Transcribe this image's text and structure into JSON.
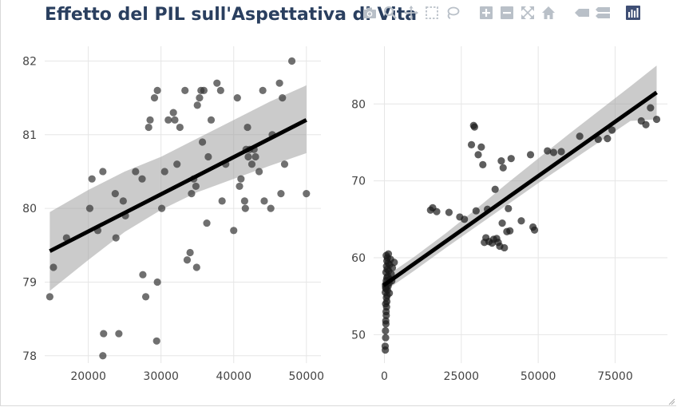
{
  "title": "Effetto del PIL sull'Aspettativa di Vita",
  "modebar": {
    "buttons": [
      {
        "name": "camera-icon"
      },
      {
        "name": "zoom-icon"
      },
      {
        "name": "pan-icon"
      },
      {
        "name": "box-select-icon"
      },
      {
        "name": "lasso-select-icon"
      },
      {
        "name": "zoom-in-icon"
      },
      {
        "name": "zoom-out-icon"
      },
      {
        "name": "autoscale-icon"
      },
      {
        "name": "home-icon"
      },
      {
        "name": "spike-lines-icon"
      },
      {
        "name": "compare-hover-icon"
      },
      {
        "name": "plotly-logo-icon"
      }
    ],
    "icon_color": "#b9c0c8",
    "logo_color": "#3f4f75"
  },
  "chart_data": [
    {
      "type": "scatter",
      "title": "",
      "xlabel": "",
      "ylabel": "",
      "xlim": [
        14000,
        52000
      ],
      "ylim": [
        77.9,
        82.2
      ],
      "xticks": [
        20000,
        30000,
        40000,
        50000
      ],
      "yticks": [
        78,
        79,
        80,
        81,
        82
      ],
      "grid": true,
      "marker_color": "#333333",
      "points": [
        [
          14700,
          78.8
        ],
        [
          15200,
          79.2
        ],
        [
          17000,
          79.6
        ],
        [
          20200,
          80.0
        ],
        [
          20500,
          80.4
        ],
        [
          21300,
          79.7
        ],
        [
          22000,
          80.5
        ],
        [
          22100,
          78.3
        ],
        [
          22000,
          78.0
        ],
        [
          23700,
          80.2
        ],
        [
          23800,
          79.6
        ],
        [
          24200,
          78.3
        ],
        [
          24800,
          80.1
        ],
        [
          25100,
          79.9
        ],
        [
          26500,
          80.5
        ],
        [
          27400,
          80.4
        ],
        [
          27500,
          79.1
        ],
        [
          27900,
          78.8
        ],
        [
          28300,
          81.1
        ],
        [
          28500,
          81.2
        ],
        [
          29100,
          81.5
        ],
        [
          29500,
          81.6
        ],
        [
          29500,
          79.0
        ],
        [
          29400,
          78.2
        ],
        [
          30100,
          80.0
        ],
        [
          30500,
          80.5
        ],
        [
          31000,
          81.2
        ],
        [
          31700,
          81.3
        ],
        [
          31900,
          81.2
        ],
        [
          32200,
          80.6
        ],
        [
          32600,
          81.1
        ],
        [
          33300,
          81.6
        ],
        [
          33600,
          79.3
        ],
        [
          34000,
          79.4
        ],
        [
          34200,
          80.2
        ],
        [
          34500,
          80.4
        ],
        [
          34800,
          80.3
        ],
        [
          34900,
          79.2
        ],
        [
          35000,
          81.4
        ],
        [
          35300,
          81.5
        ],
        [
          35500,
          81.6
        ],
        [
          35700,
          80.9
        ],
        [
          35900,
          81.6
        ],
        [
          36300,
          79.8
        ],
        [
          36500,
          80.7
        ],
        [
          36900,
          81.2
        ],
        [
          37700,
          81.7
        ],
        [
          38200,
          81.6
        ],
        [
          38400,
          80.1
        ],
        [
          38900,
          80.6
        ],
        [
          40000,
          79.7
        ],
        [
          40500,
          81.5
        ],
        [
          40800,
          80.3
        ],
        [
          41000,
          80.4
        ],
        [
          41500,
          80.1
        ],
        [
          41600,
          80.0
        ],
        [
          41700,
          80.8
        ],
        [
          41900,
          81.1
        ],
        [
          42000,
          80.7
        ],
        [
          42200,
          80.8
        ],
        [
          42500,
          80.6
        ],
        [
          42800,
          80.8
        ],
        [
          43000,
          80.7
        ],
        [
          43500,
          80.5
        ],
        [
          44000,
          81.6
        ],
        [
          44200,
          80.1
        ],
        [
          45100,
          80.0
        ],
        [
          45300,
          81.0
        ],
        [
          46300,
          81.7
        ],
        [
          46500,
          80.2
        ],
        [
          46700,
          81.5
        ],
        [
          47000,
          80.6
        ],
        [
          48000,
          82.0
        ],
        [
          50000,
          80.2
        ]
      ],
      "fit": {
        "x": [
          14700,
          50000
        ],
        "y": [
          79.42,
          81.2
        ]
      },
      "band": {
        "x": [
          14700,
          20000,
          25000,
          30000,
          35000,
          40000,
          45000,
          50000
        ],
        "upper": [
          79.95,
          80.25,
          80.5,
          80.7,
          80.95,
          81.2,
          81.45,
          81.67
        ],
        "lower": [
          78.88,
          79.3,
          79.68,
          79.98,
          80.22,
          80.4,
          80.58,
          80.75
        ]
      }
    },
    {
      "type": "scatter",
      "title": "",
      "xlabel": "",
      "ylabel": "",
      "xlim": [
        -3500,
        92000
      ],
      "ylim": [
        46.3,
        87.5
      ],
      "xticks": [
        0,
        25000,
        50000,
        75000
      ],
      "yticks": [
        50,
        60,
        70,
        80
      ],
      "grid": true,
      "marker_color": "#1a1a1a",
      "points": [
        [
          300,
          48.0
        ],
        [
          250,
          48.5
        ],
        [
          400,
          49.6
        ],
        [
          350,
          50.5
        ],
        [
          500,
          51.4
        ],
        [
          450,
          51.8
        ],
        [
          600,
          52.5
        ],
        [
          550,
          53.0
        ],
        [
          700,
          53.6
        ],
        [
          400,
          54.0
        ],
        [
          800,
          54.3
        ],
        [
          650,
          54.8
        ],
        [
          900,
          55.1
        ],
        [
          300,
          55.5
        ],
        [
          1000,
          55.8
        ],
        [
          450,
          56.0
        ],
        [
          1200,
          56.3
        ],
        [
          350,
          56.5
        ],
        [
          1500,
          56.7
        ],
        [
          600,
          57.0
        ],
        [
          1800,
          57.2
        ],
        [
          800,
          57.4
        ],
        [
          1100,
          57.6
        ],
        [
          2200,
          57.9
        ],
        [
          500,
          58.1
        ],
        [
          1400,
          58.3
        ],
        [
          900,
          58.5
        ],
        [
          2600,
          58.7
        ],
        [
          700,
          58.9
        ],
        [
          1700,
          59.1
        ],
        [
          1200,
          59.3
        ],
        [
          3200,
          59.4
        ],
        [
          800,
          59.6
        ],
        [
          2000,
          59.8
        ],
        [
          1000,
          60.0
        ],
        [
          600,
          60.3
        ],
        [
          1300,
          60.5
        ],
        [
          400,
          56.2
        ],
        [
          2400,
          57.0
        ],
        [
          1600,
          55.4
        ],
        [
          15000,
          66.2
        ],
        [
          15700,
          66.5
        ],
        [
          17000,
          66.0
        ],
        [
          21000,
          65.9
        ],
        [
          24500,
          65.3
        ],
        [
          26000,
          65.0
        ],
        [
          28300,
          74.7
        ],
        [
          29000,
          77.2
        ],
        [
          29300,
          77.0
        ],
        [
          29800,
          66.1
        ],
        [
          30500,
          73.4
        ],
        [
          31500,
          74.4
        ],
        [
          32000,
          72.1
        ],
        [
          32500,
          62.0
        ],
        [
          33000,
          62.6
        ],
        [
          33500,
          66.3
        ],
        [
          34000,
          62.1
        ],
        [
          35000,
          61.9
        ],
        [
          35500,
          62.4
        ],
        [
          36000,
          68.9
        ],
        [
          36500,
          62.5
        ],
        [
          37000,
          62.0
        ],
        [
          37500,
          61.5
        ],
        [
          38000,
          72.6
        ],
        [
          38300,
          64.5
        ],
        [
          38600,
          71.7
        ],
        [
          39000,
          61.3
        ],
        [
          39800,
          63.4
        ],
        [
          40300,
          66.4
        ],
        [
          40800,
          63.5
        ],
        [
          41200,
          72.9
        ],
        [
          44500,
          64.8
        ],
        [
          47500,
          73.4
        ],
        [
          48300,
          64.0
        ],
        [
          48800,
          63.6
        ],
        [
          53000,
          73.9
        ],
        [
          55000,
          73.7
        ],
        [
          57500,
          73.8
        ],
        [
          63500,
          75.8
        ],
        [
          69500,
          75.4
        ],
        [
          72500,
          75.5
        ],
        [
          74000,
          76.6
        ],
        [
          83500,
          77.8
        ],
        [
          85000,
          77.3
        ],
        [
          86500,
          79.5
        ],
        [
          88500,
          78.0
        ]
      ],
      "fit": {
        "x": [
          -300,
          88500
        ],
        "y": [
          56.4,
          81.5
        ]
      },
      "band": {
        "x": [
          -300,
          10000,
          20000,
          30000,
          40000,
          50000,
          60000,
          70000,
          80000,
          88500
        ],
        "upper": [
          57.35,
          60.2,
          63.2,
          66.4,
          69.7,
          72.9,
          76.1,
          79.2,
          82.3,
          85.0
        ],
        "lower": [
          55.55,
          58.4,
          61.3,
          64.1,
          66.9,
          69.7,
          72.4,
          75.1,
          77.8,
          78.0
        ]
      }
    }
  ]
}
